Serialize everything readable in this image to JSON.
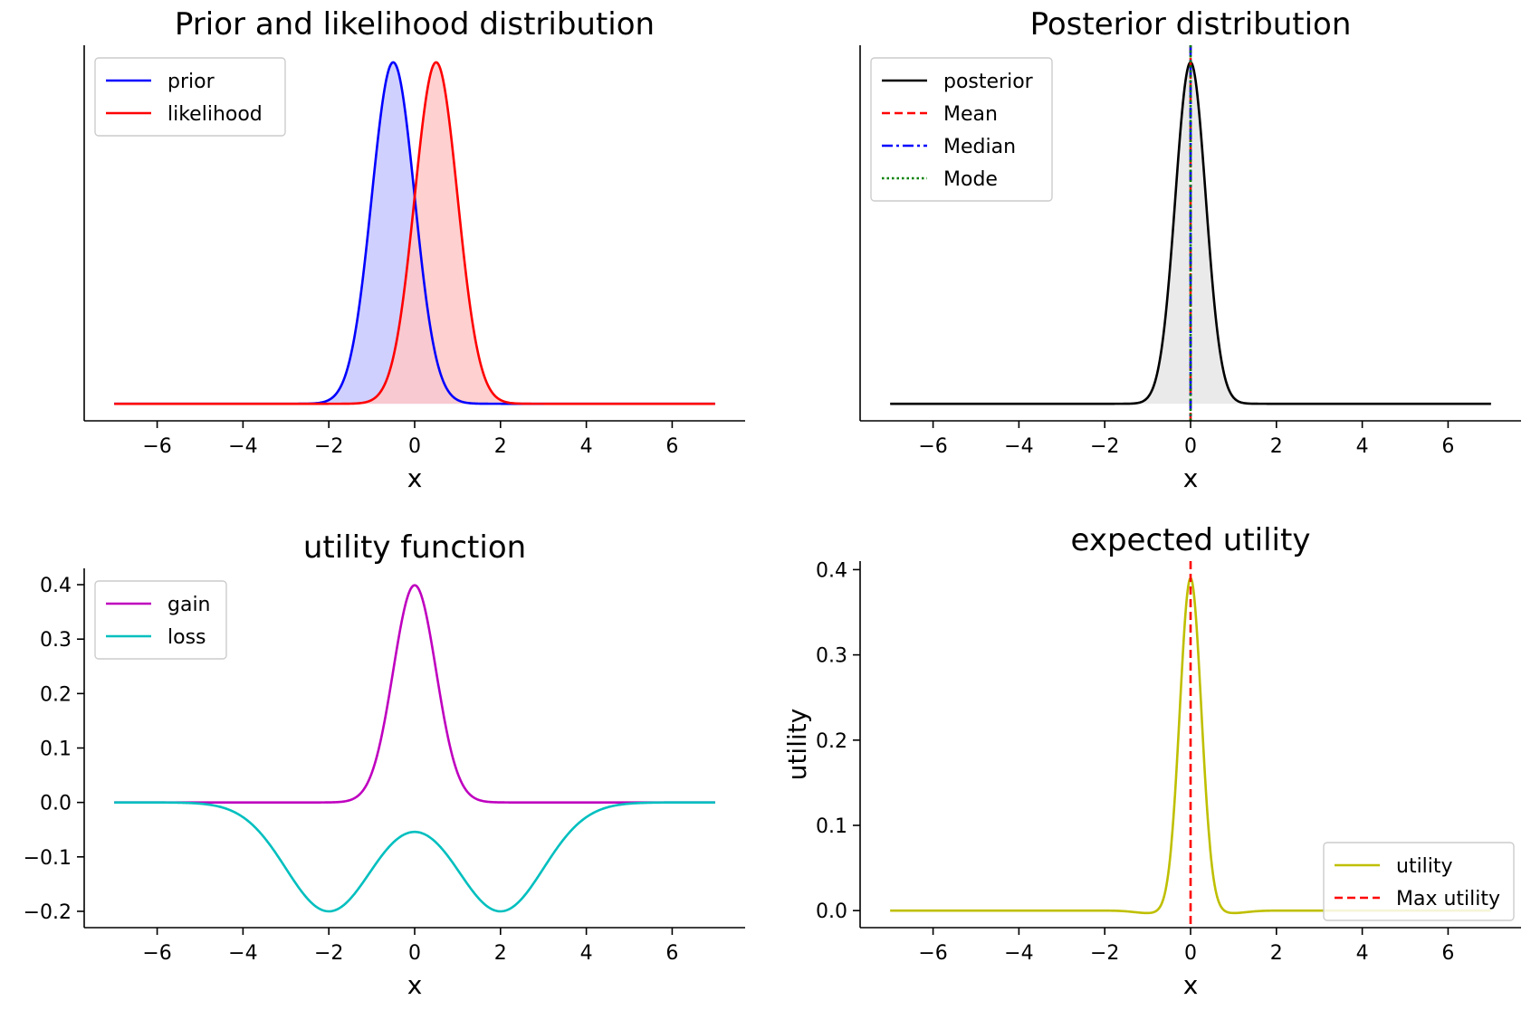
{
  "chart_data": [
    {
      "type": "line",
      "title": "Prior and likelihood distribution",
      "xlabel": "x",
      "ylabel": "",
      "xlim": [
        -7.7,
        7.7
      ],
      "ylim": [
        -0.02,
        0.42
      ],
      "xticks": [
        -6,
        -4,
        -2,
        0,
        2,
        4,
        6
      ],
      "xtick_labels": [
        "−6",
        "−4",
        "−2",
        "0",
        "2",
        "4",
        "6"
      ],
      "yticks": [],
      "ytick_labels": [],
      "x_range": [
        -7,
        7
      ],
      "legend_position": "upper-left",
      "series": [
        {
          "name": "prior",
          "color": "#0000ff",
          "fill": "#c8c8ff",
          "dash": "solid",
          "shape": "gaussian",
          "mu": -0.5,
          "sigma": 0.5,
          "peak": 0.4
        },
        {
          "name": "likelihood",
          "color": "#ff0000",
          "fill": "#ffc8c8",
          "dash": "solid",
          "shape": "gaussian",
          "mu": 0.5,
          "sigma": 0.5,
          "peak": 0.4
        }
      ]
    },
    {
      "type": "line",
      "title": "Posterior distribution",
      "xlabel": "x",
      "ylabel": "",
      "xlim": [
        -7.7,
        7.7
      ],
      "ylim": [
        -0.02,
        0.42
      ],
      "xticks": [
        -6,
        -4,
        -2,
        0,
        2,
        4,
        6
      ],
      "xtick_labels": [
        "−6",
        "−4",
        "−2",
        "0",
        "2",
        "4",
        "6"
      ],
      "yticks": [],
      "ytick_labels": [],
      "x_range": [
        -7,
        7
      ],
      "legend_position": "upper-left",
      "series": [
        {
          "name": "posterior",
          "color": "#000000",
          "fill": "#e6e6e6",
          "dash": "solid",
          "shape": "gaussian",
          "mu": 0,
          "sigma": 0.3536,
          "peak": 0.4
        }
      ],
      "vlines": [
        {
          "name": "Mean",
          "x": 0,
          "color": "#ff0000",
          "dash": "dashed"
        },
        {
          "name": "Median",
          "x": 0,
          "color": "#0000ff",
          "dash": "dashdot"
        },
        {
          "name": "Mode",
          "x": 0,
          "color": "#008000",
          "dash": "dotted"
        }
      ]
    },
    {
      "type": "line",
      "title": "utility function",
      "xlabel": "x",
      "ylabel": "",
      "xlim": [
        -7.7,
        7.7
      ],
      "ylim": [
        -0.23,
        0.43
      ],
      "xticks": [
        -6,
        -4,
        -2,
        0,
        2,
        4,
        6
      ],
      "xtick_labels": [
        "−6",
        "−4",
        "−2",
        "0",
        "2",
        "4",
        "6"
      ],
      "yticks": [
        -0.2,
        -0.1,
        0.0,
        0.1,
        0.2,
        0.3,
        0.4
      ],
      "ytick_labels": [
        "−0.2",
        "−0.1",
        "0.0",
        "0.1",
        "0.2",
        "0.3",
        "0.4"
      ],
      "x_range": [
        -7,
        7
      ],
      "legend_position": "upper-left",
      "series": [
        {
          "name": "gain",
          "color": "#bf00bf",
          "dash": "solid",
          "shape": "gaussian",
          "mu": 0,
          "sigma": 0.5,
          "peak": 0.399
        },
        {
          "name": "loss",
          "color": "#00bfbf",
          "dash": "solid",
          "shape": "double-gaussian",
          "mu": [
            -2,
            2
          ],
          "sigma": 1.0,
          "peak": -0.2
        }
      ]
    },
    {
      "type": "line",
      "title": "expected utility",
      "xlabel": "x",
      "ylabel": "utility",
      "xlim": [
        -7.7,
        7.7
      ],
      "ylim": [
        -0.02,
        0.41
      ],
      "xticks": [
        -6,
        -4,
        -2,
        0,
        2,
        4,
        6
      ],
      "xtick_labels": [
        "−6",
        "−4",
        "−2",
        "0",
        "2",
        "4",
        "6"
      ],
      "yticks": [
        0.0,
        0.1,
        0.2,
        0.3,
        0.4
      ],
      "ytick_labels": [
        "0.0",
        "0.1",
        "0.2",
        "0.3",
        "0.4"
      ],
      "x_range": [
        -7,
        7
      ],
      "legend_position": "lower-right",
      "series": [
        {
          "name": "utility",
          "color": "#bfbf00",
          "dash": "solid",
          "shape": "expected-utility",
          "mu": 0,
          "sigma": 0.25,
          "peak": 0.39,
          "dip": -0.003
        }
      ],
      "vlines": [
        {
          "name": "Max utility",
          "x": 0,
          "color": "#ff0000",
          "dash": "dashed"
        }
      ]
    }
  ]
}
